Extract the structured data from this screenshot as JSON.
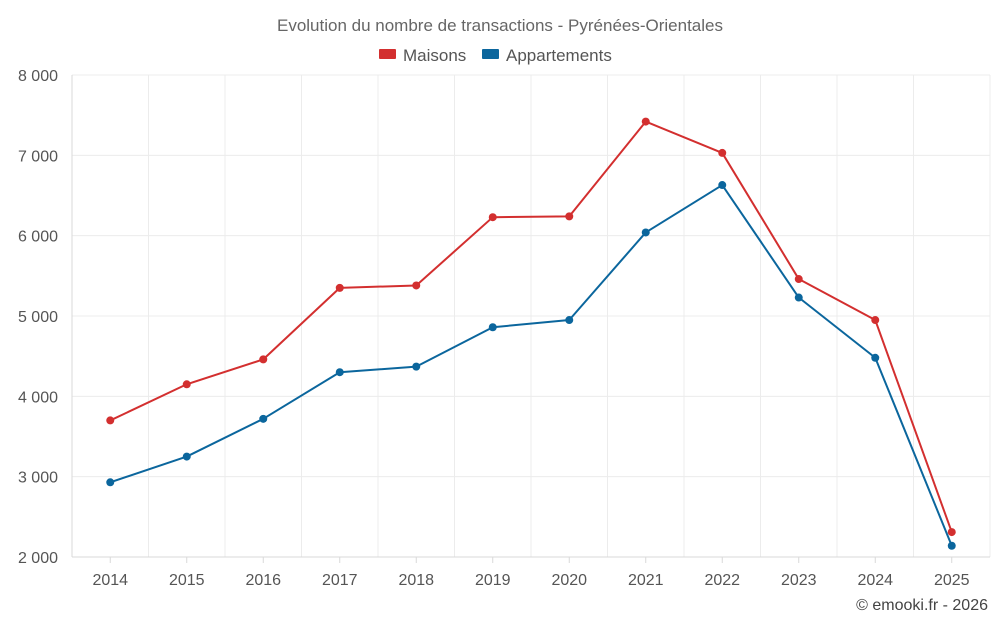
{
  "chart_data": {
    "type": "line",
    "title": "Evolution du nombre de transactions - Pyrénées-Orientales",
    "categories": [
      "2014",
      "2015",
      "2016",
      "2017",
      "2018",
      "2019",
      "2020",
      "2021",
      "2022",
      "2023",
      "2024",
      "2025"
    ],
    "series": [
      {
        "name": "Maisons",
        "color": "#d32f2f",
        "values": [
          3700,
          4150,
          4460,
          5350,
          5380,
          6230,
          6240,
          7420,
          7030,
          5460,
          4950,
          2310
        ]
      },
      {
        "name": "Appartements",
        "color": "#0b669d",
        "values": [
          2930,
          3250,
          3720,
          4300,
          4370,
          4860,
          4950,
          6040,
          6630,
          5230,
          4480,
          2140
        ]
      }
    ],
    "yticks": [
      "2 000",
      "3 000",
      "4 000",
      "5 000",
      "6 000",
      "7 000",
      "8 000"
    ],
    "ylim": [
      2000,
      8000
    ],
    "legend_position": "top-center",
    "grid": true,
    "xlabel": "",
    "ylabel": ""
  },
  "credit": "© emooki.fr - 2026"
}
